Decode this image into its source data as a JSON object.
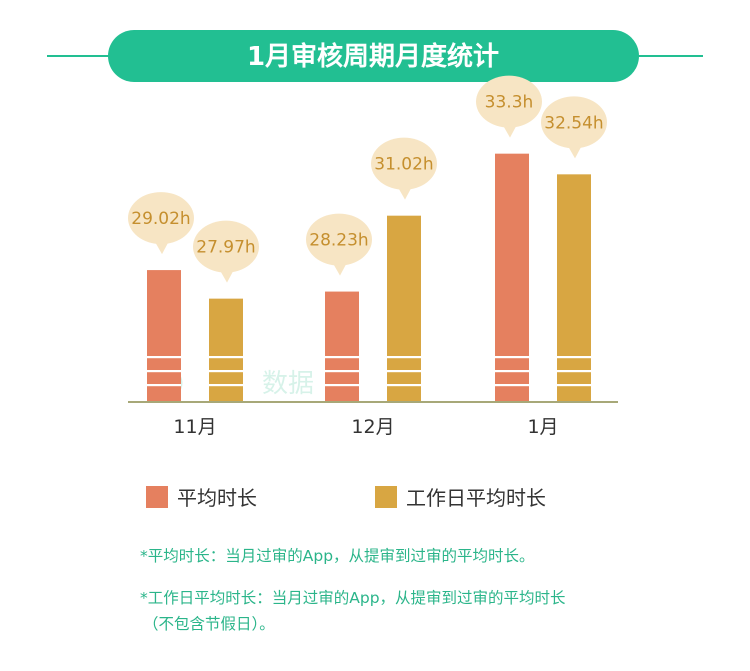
{
  "colors": {
    "teal": "#22bf92",
    "orange": "#e5805f",
    "gold": "#d8a642",
    "bubble": "#f7e5c4",
    "bubble_text": "#c58f2e",
    "axis": "#a7a878",
    "note": "#2bb58a"
  },
  "chart_data": {
    "type": "bar",
    "title": "1月审核周期月度统计",
    "categories": [
      "11月",
      "12月",
      "1月"
    ],
    "series": [
      {
        "name": "平均时长",
        "values": [
          29.02,
          28.23,
          33.3
        ],
        "labels": [
          "29.02h",
          "28.23h",
          "33.3h"
        ]
      },
      {
        "name": "工作日平均时长",
        "values": [
          27.97,
          31.02,
          32.54
        ],
        "labels": [
          "27.97h",
          "31.02h",
          "32.54h"
        ]
      }
    ],
    "unit": "h",
    "legend_position": "bottom",
    "grid": false
  },
  "notes": {
    "note1": "*平均时长：当月过审的App，从提审到过审的平均时长。",
    "note2": "*工作日平均时长：当月过审的App，从提审到过审的平均时长",
    "note2_cont": "（不包含节假日）。"
  },
  "watermark": "数据"
}
